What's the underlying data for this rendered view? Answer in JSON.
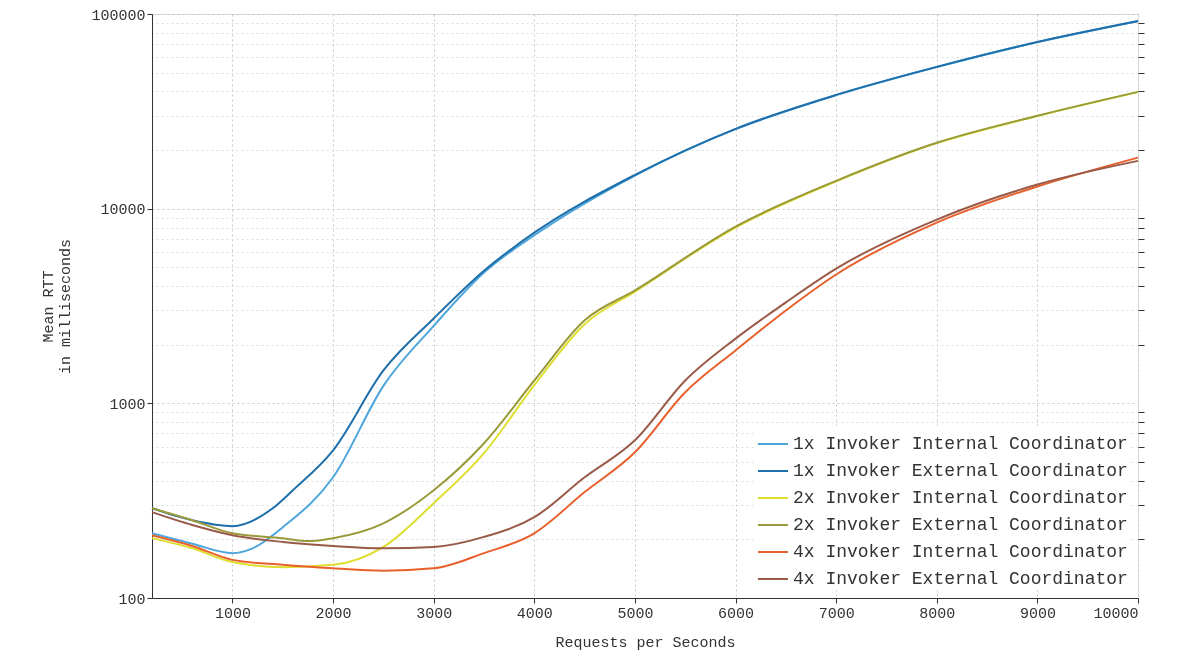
{
  "chart_data": {
    "type": "line",
    "xlabel": "Requests per Seconds",
    "ylabel": "Mean RTT\nin milliseconds",
    "xlim": [
      200,
      10000
    ],
    "xticks": [
      1000,
      2000,
      3000,
      4000,
      5000,
      6000,
      7000,
      8000,
      9000,
      10000
    ],
    "ylim": [
      100,
      100000
    ],
    "yticks": [
      100,
      1000,
      10000,
      100000
    ],
    "log": "y",
    "grid": true,
    "legend": "bottom right",
    "line_style": "solid",
    "marker": "none",
    "series": [
      {
        "name": "1x Invoker Internal Coordinator",
        "color": "#4ea6dc",
        "x": [
          200,
          600,
          1000,
          1200,
          1500,
          2000,
          2500,
          3000,
          3500,
          4000,
          5000,
          6000,
          7000,
          8000,
          9000,
          10000
        ],
        "values": [
          215,
          190,
          170,
          180,
          231,
          417,
          1230,
          2500,
          4700,
          7300,
          14800,
          25600,
          38300,
          53400,
          71700,
          91900
        ]
      },
      {
        "name": "1x Invoker External Coordinator",
        "color": "#1f6fab",
        "x": [
          200,
          600,
          1000,
          1400,
          1600,
          2000,
          2500,
          3000,
          3500,
          4000,
          5000,
          6000,
          7000,
          8000,
          9000,
          10000
        ],
        "values": [
          289,
          251,
          234,
          289,
          358,
          574,
          1475,
          2730,
          4800,
          7530,
          14900,
          25700,
          38400,
          53500,
          71800,
          92000
        ]
      },
      {
        "name": "2x Invoker Internal Coordinator",
        "color": "#dede2e",
        "x": [
          200,
          600,
          1000,
          1500,
          2000,
          2500,
          3000,
          3500,
          4000,
          4500,
          5000,
          6000,
          7000,
          8000,
          9000,
          10000
        ],
        "values": [
          203,
          180,
          153,
          144,
          148,
          183,
          307,
          555,
          1240,
          2550,
          3750,
          8000,
          13800,
          21700,
          29900,
          39700
        ]
      },
      {
        "name": "2x Invoker External Coordinator",
        "color": "#9a9a3a",
        "x": [
          200,
          600,
          1000,
          1500,
          1750,
          2000,
          2500,
          3000,
          3500,
          4000,
          4500,
          5000,
          6000,
          7000,
          8000,
          9000,
          10000
        ],
        "values": [
          289,
          251,
          215,
          203,
          196,
          203,
          242,
          358,
          624,
          1310,
          2670,
          3800,
          8090,
          13900,
          21800,
          30000,
          39800
        ]
      },
      {
        "name": "4x Invoker Internal Coordinator",
        "color": "#e8602c",
        "x": [
          200,
          600,
          1000,
          1500,
          2000,
          2500,
          3000,
          3500,
          4000,
          4500,
          5000,
          5500,
          6000,
          6500,
          7000,
          8000,
          9000,
          10000
        ],
        "values": [
          210,
          185,
          157,
          148,
          142,
          138,
          142,
          170,
          215,
          350,
          561,
          1140,
          1870,
          3000,
          4590,
          8480,
          13000,
          18300
        ]
      },
      {
        "name": "4x Invoker External Coordinator",
        "color": "#9a5a48",
        "x": [
          200,
          600,
          1000,
          1500,
          2000,
          2500,
          3000,
          3500,
          4000,
          4500,
          5000,
          5500,
          6000,
          6500,
          7000,
          8000,
          9000,
          10000
        ],
        "values": [
          276,
          237,
          210,
          194,
          185,
          180,
          183,
          206,
          260,
          417,
          646,
          1310,
          2150,
          3300,
          4920,
          8790,
          13300,
          17600
        ]
      }
    ]
  }
}
